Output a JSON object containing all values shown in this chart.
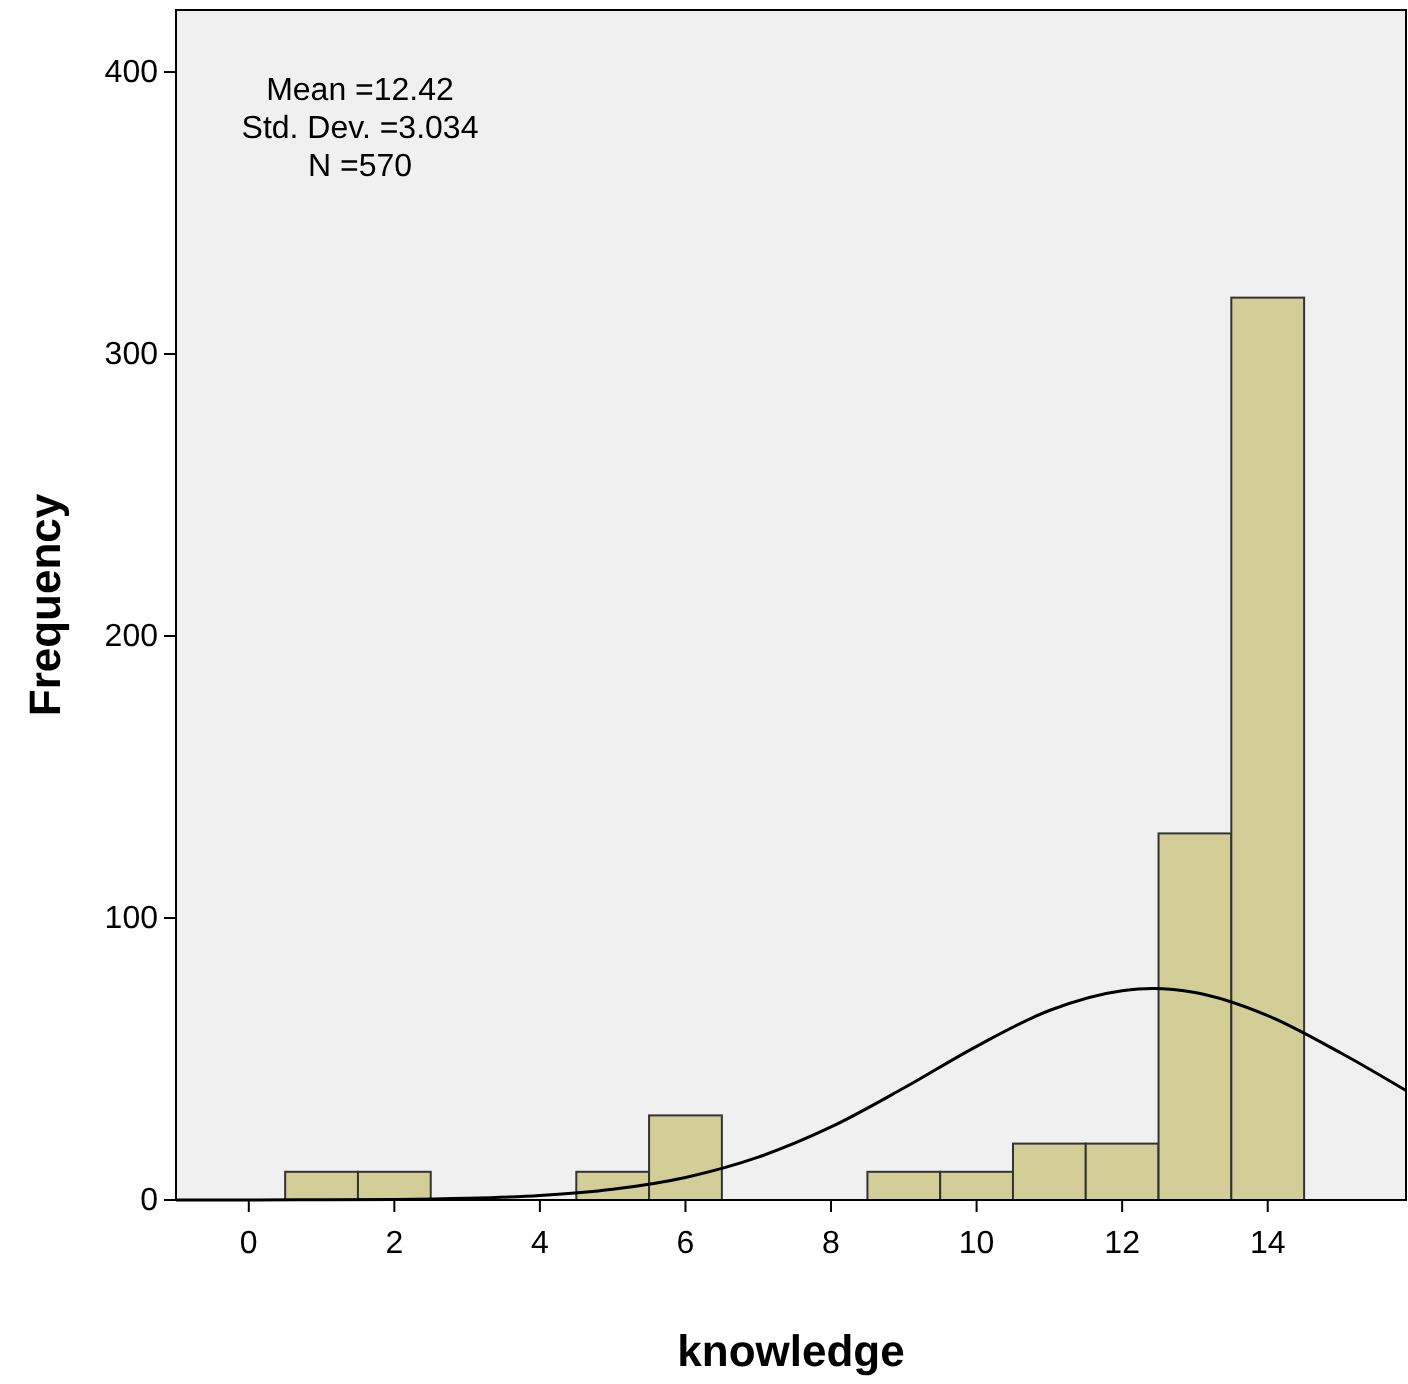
{
  "chart_data": {
    "type": "histogram",
    "xlabel": "knowledge",
    "ylabel": "Frequency",
    "bins": [
      0.5,
      1.5,
      2.5,
      3.5,
      4.5,
      5.5,
      6.5,
      7.5,
      8.5,
      9.5,
      10.5,
      11.5,
      12.5,
      13.5,
      14.5
    ],
    "values": [
      10,
      10,
      0,
      0,
      10,
      30,
      0,
      0,
      10,
      10,
      20,
      20,
      130,
      320
    ],
    "color": "#d3ce97",
    "series": [
      {
        "type": "line",
        "color": "#000000",
        "x": [
          -1,
          0,
          1,
          2,
          3,
          4,
          5,
          6,
          7,
          8,
          9,
          10,
          11,
          12,
          12.42,
          13,
          14,
          15,
          15.9
        ],
        "values": [
          0,
          0,
          0.1,
          0.2,
          0.6,
          1.6,
          3.8,
          8,
          15.2,
          25.9,
          39.7,
          54.5,
          67.2,
          74.2,
          75,
          73.6,
          65.4,
          52.2,
          38.8
        ]
      }
    ],
    "xlim": [
      -1,
      15.9
    ],
    "ylim": [
      0,
      422
    ],
    "xticks": [
      0,
      2,
      4,
      6,
      8,
      10,
      12,
      14
    ],
    "yticks": [
      0,
      100,
      200,
      300,
      400
    ],
    "annotations": [
      "Mean =12.42",
      "Std. Dev. =3.034",
      "N =570"
    ]
  }
}
